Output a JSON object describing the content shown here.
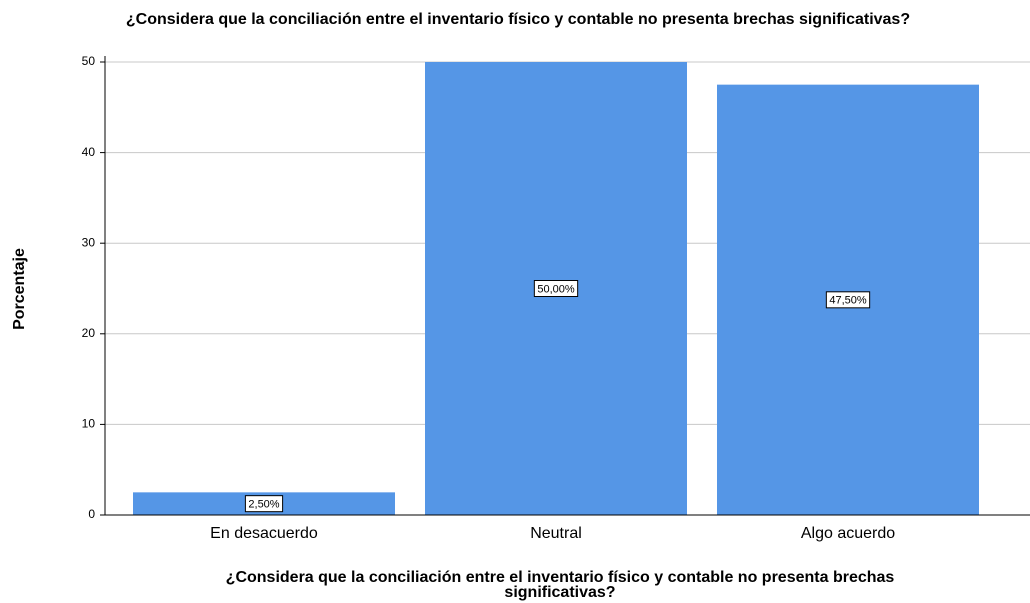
{
  "chart_data": {
    "type": "bar",
    "title": "¿Considera que la conciliación entre el inventario físico y contable no presenta brechas significativas?",
    "ylabel": "Porcentaje",
    "xlabel": [
      "¿Considera que la conciliación entre el inventario físico y contable no presenta brechas",
      "significativas?"
    ],
    "categories": [
      "En desacuerdo",
      "Neutral",
      "Algo acuerdo"
    ],
    "values": [
      2.5,
      50,
      47.5
    ],
    "value_labels": [
      "2,50%",
      "50,00%",
      "47,50%"
    ],
    "color": "#5596e6",
    "ylim": [
      0,
      50
    ],
    "yticks": [
      0,
      10,
      20,
      30,
      40,
      50
    ],
    "grid": true
  }
}
